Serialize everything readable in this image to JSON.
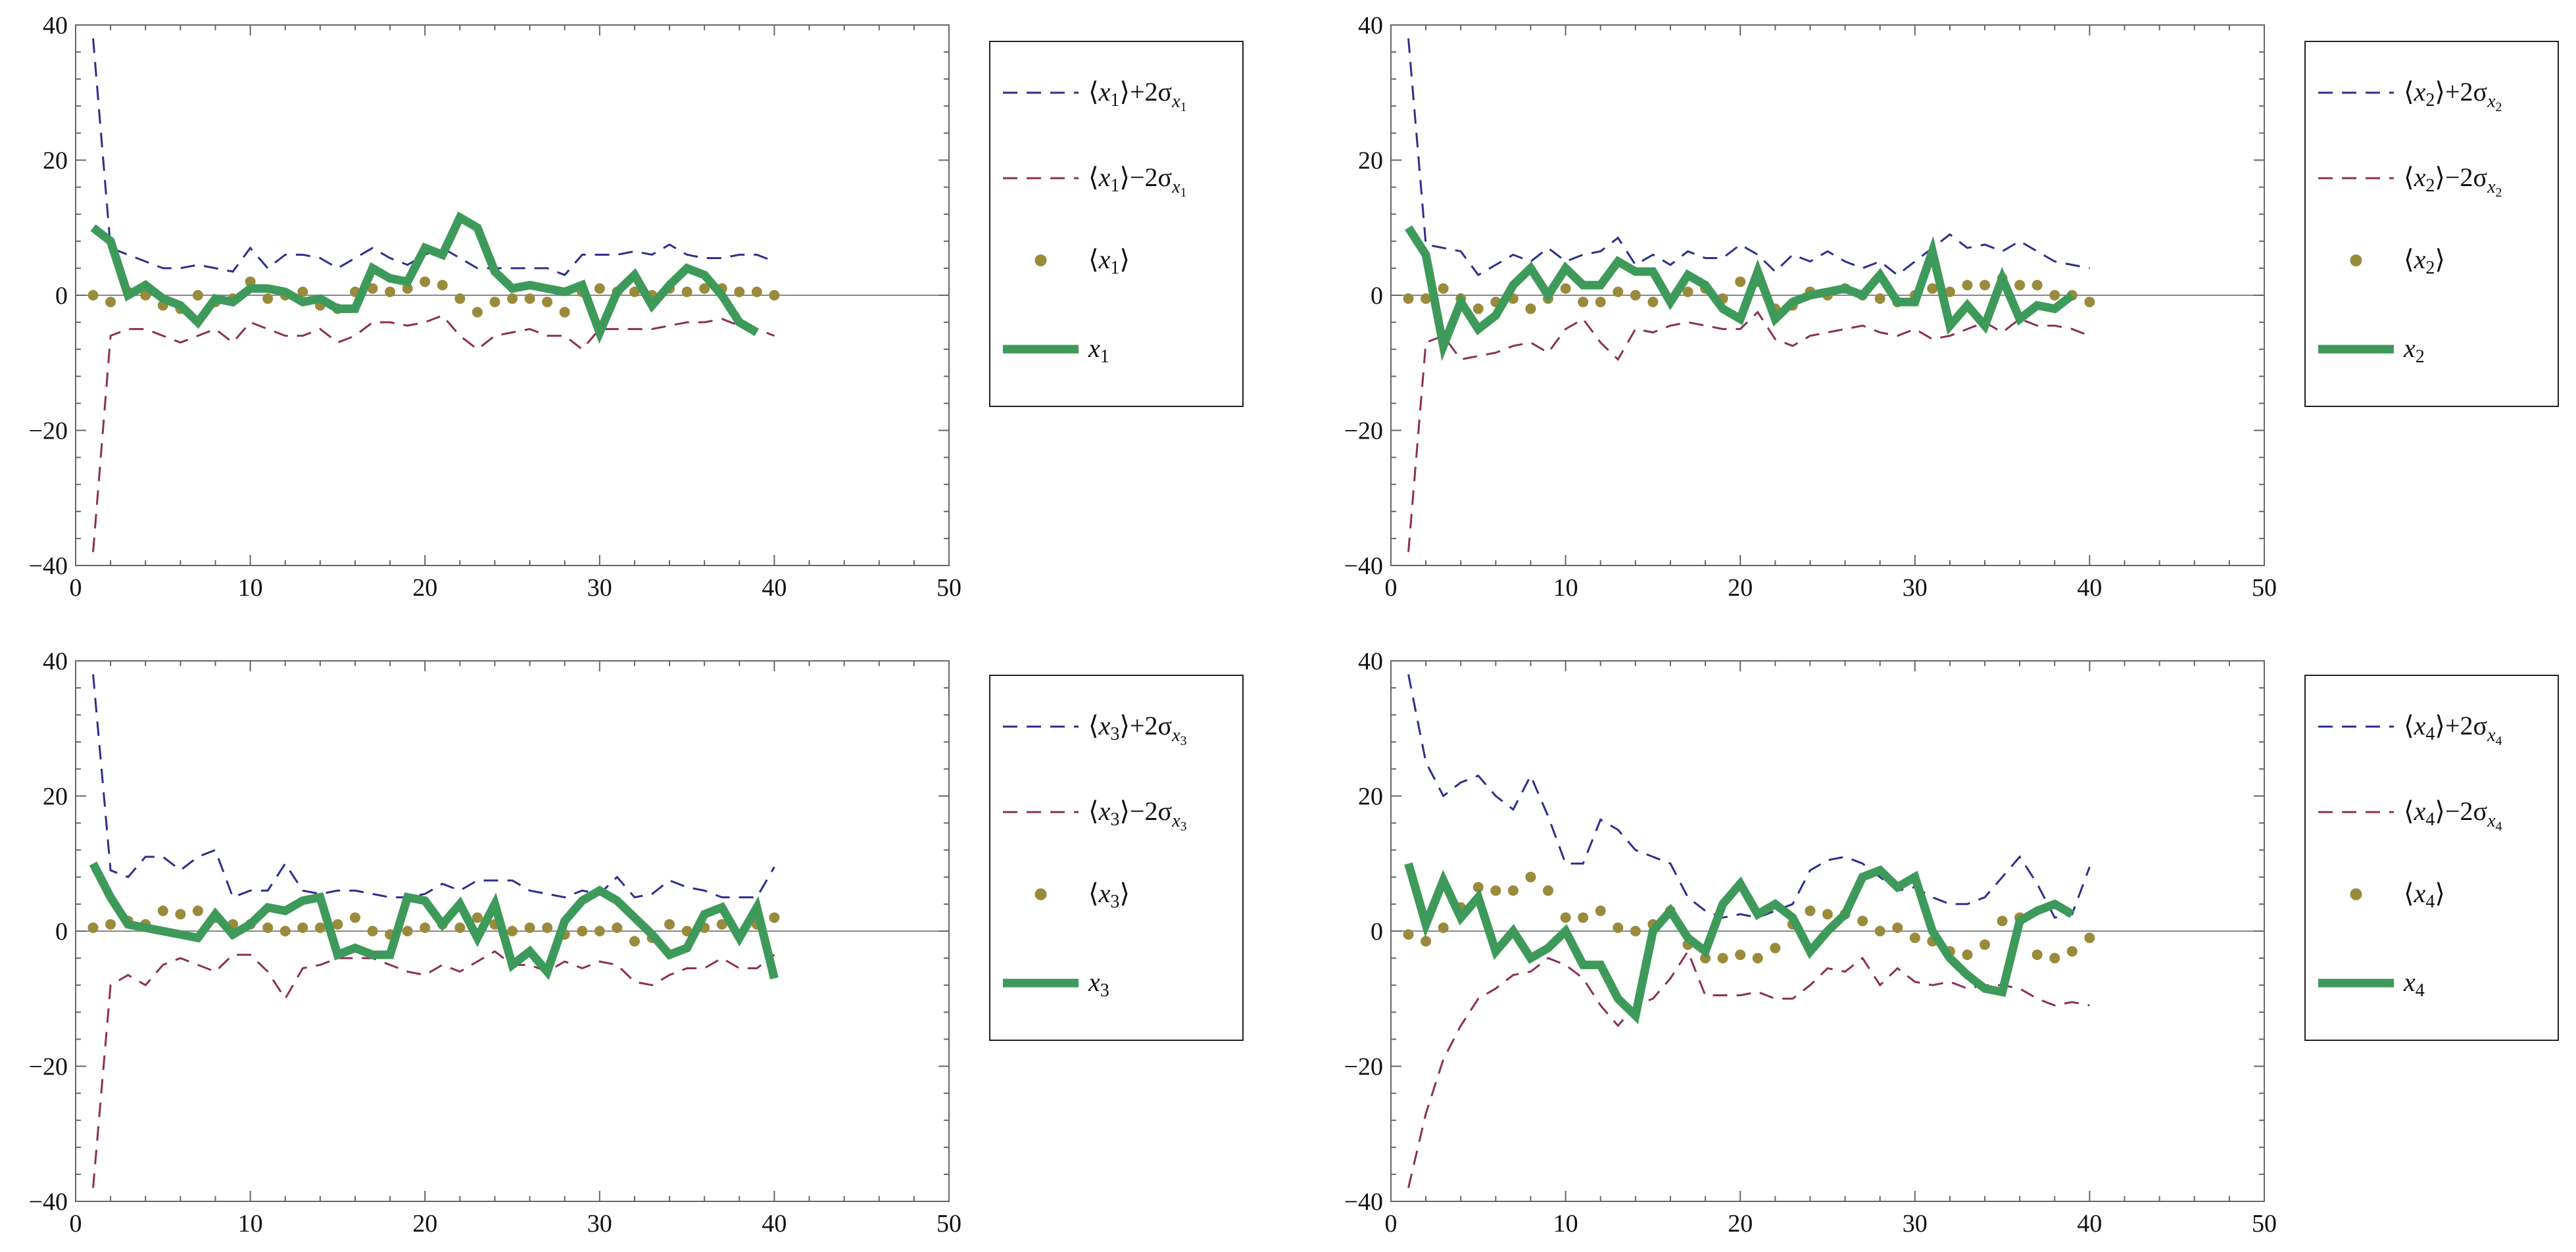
{
  "colors": {
    "upper": "#2e2e8c",
    "lower": "#8c2e5a",
    "mean": "#9a8a3c",
    "actual": "#3e9a5a",
    "axis": "#666666",
    "zero": "#888888"
  },
  "chart_data": [
    {
      "type": "line",
      "xlim": [
        0,
        50
      ],
      "ylim": [
        -40,
        40
      ],
      "xticks": [
        "0",
        "10",
        "20",
        "30",
        "40",
        "50"
      ],
      "yticks": [
        "-40",
        "-20",
        "0",
        "20",
        "40"
      ],
      "legend": {
        "upper": "⟨x1⟩+2σx1",
        "lower": "⟨x1⟩−2σx1",
        "mean": "⟨x1⟩",
        "actual": "x1"
      },
      "legend_parts": {
        "upper": {
          "var": "x",
          "sub": "1",
          "op": "+2σ",
          "ssub": "x",
          "sssub": "1"
        },
        "lower": {
          "var": "x",
          "sub": "1",
          "op": "−2σ",
          "ssub": "x",
          "sssub": "1"
        },
        "mean": {
          "var": "x",
          "sub": "1"
        },
        "actual": {
          "var": "x",
          "sub": "1"
        }
      },
      "series": [
        {
          "name": "upper",
          "values": [
            38,
            7,
            6,
            5,
            4,
            4,
            4.5,
            4,
            3.5,
            7,
            4,
            6,
            6,
            5.5,
            4,
            5.5,
            7,
            5.5,
            4.5,
            6,
            7,
            5.5,
            4,
            4,
            4,
            4,
            4,
            3,
            6,
            6,
            6,
            6.5,
            6,
            7.5,
            6,
            5.5,
            5.5,
            6,
            6,
            5
          ]
        },
        {
          "name": "lower",
          "values": [
            -38,
            -6,
            -5,
            -5,
            -6,
            -7,
            -6,
            -5,
            -7,
            -4,
            -5,
            -6,
            -6,
            -5,
            -7,
            -6,
            -4,
            -4,
            -4.5,
            -4,
            -3,
            -6,
            -8,
            -6,
            -5.5,
            -5,
            -6,
            -6,
            -8,
            -5,
            -5,
            -5,
            -5,
            -4.5,
            -4,
            -4,
            -3.5,
            -4.5,
            -5,
            -6
          ]
        },
        {
          "name": "mean",
          "values": [
            0,
            -1,
            0.5,
            0,
            -1.5,
            -2,
            0,
            -1,
            -0.5,
            2,
            -0.5,
            0,
            0.5,
            -1.5,
            -2,
            0.5,
            1,
            0.5,
            1,
            2,
            1.5,
            -0.5,
            -2.5,
            -1,
            -0.5,
            -0.5,
            -1,
            -2.5,
            0.5,
            1,
            0.5,
            0.5,
            0,
            1,
            0.5,
            1,
            1,
            0.5,
            0.5,
            0
          ]
        },
        {
          "name": "actual",
          "values": [
            10,
            8,
            0,
            1.5,
            -0.5,
            -1.5,
            -4,
            -0.5,
            -1,
            1,
            1,
            0.5,
            -1,
            -0.5,
            -2,
            -2,
            4,
            2.5,
            2,
            7,
            6,
            11.5,
            10,
            3.5,
            1,
            1.5,
            1,
            0.5,
            1.5,
            -5.5,
            0.5,
            3,
            -1.5,
            1.5,
            4,
            3,
            0,
            -4,
            -5.5
          ]
        }
      ]
    },
    {
      "type": "line",
      "xlim": [
        0,
        50
      ],
      "ylim": [
        -40,
        40
      ],
      "xticks": [
        "0",
        "10",
        "20",
        "30",
        "40",
        "50"
      ],
      "yticks": [
        "-40",
        "-20",
        "0",
        "20",
        "40"
      ],
      "legend": {
        "upper": "⟨x2⟩+2σx2",
        "lower": "⟨x2⟩−2σx2",
        "mean": "⟨x2⟩",
        "actual": "x2"
      },
      "legend_parts": {
        "upper": {
          "var": "x",
          "sub": "2",
          "op": "+2σ",
          "ssub": "x",
          "sssub": "2"
        },
        "lower": {
          "var": "x",
          "sub": "2",
          "op": "−2σ",
          "ssub": "x",
          "sssub": "2"
        },
        "mean": {
          "var": "x",
          "sub": "2"
        },
        "actual": {
          "var": "x",
          "sub": "2"
        }
      },
      "series": [
        {
          "name": "upper",
          "values": [
            38,
            7.5,
            7,
            6.5,
            3,
            4.5,
            6,
            5,
            7,
            5,
            6,
            6.5,
            8.5,
            4.5,
            6,
            4.5,
            6.5,
            5.5,
            5.5,
            7.5,
            6,
            3.5,
            6,
            5,
            6.5,
            5,
            4,
            5,
            3,
            5,
            7,
            9,
            7,
            7.5,
            6.5,
            8,
            6.5,
            5,
            4.5,
            4
          ]
        },
        {
          "name": "lower",
          "values": [
            -38,
            -7,
            -6,
            -9.5,
            -9,
            -8.5,
            -7.5,
            -7,
            -8.5,
            -5,
            -3.5,
            -7,
            -9.5,
            -5,
            -5.5,
            -4.5,
            -4,
            -4.5,
            -5,
            -5,
            -2.5,
            -6.5,
            -7.5,
            -6,
            -5.5,
            -5,
            -4.5,
            -5.5,
            -6,
            -5,
            -6.5,
            -6,
            -5,
            -4,
            -5.5,
            -3.5,
            -4.5,
            -4.5,
            -5,
            -6
          ]
        },
        {
          "name": "mean",
          "values": [
            -0.5,
            -0.5,
            1,
            -0.5,
            -2,
            -1,
            -0.5,
            -2,
            -0.5,
            1,
            -1,
            -1,
            0.5,
            0,
            -1,
            -0.5,
            0.5,
            1,
            -0.5,
            2,
            2,
            -2,
            -1.5,
            0.5,
            0,
            1,
            0,
            -0.5,
            -1,
            0,
            1,
            0.5,
            1.5,
            1.5,
            2.5,
            1.5,
            1.5,
            0,
            0,
            -1
          ]
        },
        {
          "name": "actual",
          "values": [
            10,
            6,
            -7.5,
            -1,
            -5,
            -3,
            1.5,
            4,
            0,
            4,
            1.5,
            1.5,
            5,
            3.5,
            3.5,
            -1,
            3,
            1.5,
            -2,
            -3.5,
            3.5,
            -3.5,
            -1,
            0,
            0.5,
            1,
            0,
            3,
            -1,
            -1,
            6.5,
            -4.5,
            -1.5,
            -4.5,
            2.5,
            -3.5,
            -1.5,
            -2,
            0
          ]
        }
      ]
    },
    {
      "type": "line",
      "xlim": [
        0,
        50
      ],
      "ylim": [
        -40,
        40
      ],
      "xticks": [
        "0",
        "10",
        "20",
        "30",
        "40",
        "50"
      ],
      "yticks": [
        "-40",
        "-20",
        "0",
        "20",
        "40"
      ],
      "legend": {
        "upper": "⟨x3⟩+2σx3",
        "lower": "⟨x3⟩−2σx3",
        "mean": "⟨x3⟩",
        "actual": "x3"
      },
      "legend_parts": {
        "upper": {
          "var": "x",
          "sub": "3",
          "op": "+2σ",
          "ssub": "x",
          "sssub": "3"
        },
        "lower": {
          "var": "x",
          "sub": "3",
          "op": "−2σ",
          "ssub": "x",
          "sssub": "3"
        },
        "mean": {
          "var": "x",
          "sub": "3"
        },
        "actual": {
          "var": "x",
          "sub": "3"
        }
      },
      "series": [
        {
          "name": "upper",
          "values": [
            38,
            9,
            8,
            11,
            11,
            9,
            11,
            12,
            5,
            6,
            6,
            10,
            6,
            5.5,
            6,
            6,
            5.5,
            5,
            5,
            5.5,
            7,
            6,
            7.5,
            7.5,
            7.5,
            6,
            5.5,
            5,
            6,
            5.5,
            8,
            5,
            5.5,
            7.5,
            6.5,
            6,
            5,
            5,
            5,
            9.5
          ]
        },
        {
          "name": "lower",
          "values": [
            -38,
            -8,
            -6.5,
            -8,
            -5,
            -4,
            -5,
            -6,
            -3.5,
            -3.5,
            -6,
            -10,
            -5.5,
            -5,
            -4,
            -4,
            -4,
            -5,
            -6,
            -6.5,
            -5,
            -6,
            -4.5,
            -3,
            -5,
            -5,
            -6,
            -4.5,
            -5.5,
            -4.5,
            -5,
            -7.5,
            -8,
            -6.5,
            -5.5,
            -5.5,
            -4,
            -5.5,
            -5.5,
            -3.5
          ]
        },
        {
          "name": "mean",
          "values": [
            0.5,
            1,
            1.5,
            1,
            3,
            2.5,
            3,
            2,
            1,
            1,
            0.5,
            0,
            0.5,
            0.5,
            1,
            2,
            0,
            -0.5,
            0,
            0.5,
            1,
            0.5,
            2,
            1,
            0,
            0.5,
            0.5,
            -0.5,
            0,
            0,
            0.5,
            -1.5,
            -1,
            1,
            0,
            0.5,
            1,
            -0.5,
            1,
            2
          ]
        },
        {
          "name": "actual",
          "values": [
            10,
            5,
            1,
            0.5,
            0,
            -0.5,
            -1,
            2.5,
            -0.5,
            1,
            3.5,
            3,
            4.5,
            5,
            -3.5,
            -2.5,
            -3.5,
            -3.5,
            5,
            4.5,
            1,
            4,
            -1,
            4,
            -5,
            -3,
            -6,
            1.5,
            4.5,
            6,
            4.5,
            2,
            -0.5,
            -3.5,
            -2.5,
            2.5,
            3.5,
            -1,
            3.5,
            -7
          ]
        }
      ]
    },
    {
      "type": "line",
      "xlim": [
        0,
        50
      ],
      "ylim": [
        -40,
        40
      ],
      "xticks": [
        "0",
        "10",
        "20",
        "30",
        "40",
        "50"
      ],
      "yticks": [
        "-40",
        "-20",
        "0",
        "20",
        "40"
      ],
      "legend": {
        "upper": "⟨x4⟩+2σx4",
        "lower": "⟨x4⟩−2σx4",
        "mean": "⟨x4⟩",
        "actual": "x4"
      },
      "legend_parts": {
        "upper": {
          "var": "x",
          "sub": "4",
          "op": "+2σ",
          "ssub": "x",
          "sssub": "4"
        },
        "lower": {
          "var": "x",
          "sub": "4",
          "op": "−2σ",
          "ssub": "x",
          "sssub": "4"
        },
        "mean": {
          "var": "x",
          "sub": "4"
        },
        "actual": {
          "var": "x",
          "sub": "4"
        }
      },
      "series": [
        {
          "name": "upper",
          "values": [
            38,
            25,
            20,
            22,
            23,
            20,
            18,
            23,
            17,
            10,
            10,
            16.5,
            15,
            12,
            11,
            10,
            5,
            3,
            2,
            2.5,
            2,
            3,
            4,
            9,
            10.5,
            11,
            10,
            8,
            6,
            6.5,
            5,
            4,
            4,
            5,
            8,
            11,
            7,
            2,
            2.5,
            9.5
          ]
        },
        {
          "name": "lower",
          "values": [
            -38,
            -27,
            -19,
            -14,
            -10,
            -8.5,
            -6.5,
            -6,
            -4,
            -5,
            -7,
            -11,
            -14,
            -11,
            -10,
            -7,
            -3,
            -9.5,
            -9.5,
            -9.5,
            -9,
            -10,
            -10,
            -8,
            -5.5,
            -6,
            -4,
            -8,
            -5.5,
            -7.5,
            -8,
            -7.5,
            -8.5,
            -8,
            -8,
            -8.5,
            -10,
            -11,
            -10.5,
            -11
          ]
        },
        {
          "name": "mean",
          "values": [
            -0.5,
            -1.5,
            0.5,
            3.5,
            6.5,
            6,
            6,
            8,
            6,
            2,
            2,
            3,
            0.5,
            0,
            1,
            3,
            -2,
            -4,
            -4,
            -3.5,
            -4,
            -2.5,
            1,
            3,
            2.5,
            2.5,
            1.5,
            0,
            0.5,
            -1,
            -1.5,
            -3,
            -3.5,
            -2,
            1.5,
            2,
            -3.5,
            -4,
            -3,
            -1
          ]
        },
        {
          "name": "actual",
          "values": [
            10,
            1,
            7.5,
            2,
            5,
            -3,
            0,
            -4,
            -2.5,
            0,
            -5,
            -5,
            -10,
            -12.5,
            0,
            3,
            -1,
            -3,
            4,
            7,
            2.5,
            4,
            2,
            -3,
            0,
            2.5,
            8,
            9,
            6.5,
            8,
            0,
            -4,
            -6.5,
            -8.5,
            -9,
            1.5,
            3,
            4,
            2.5
          ]
        }
      ]
    }
  ]
}
